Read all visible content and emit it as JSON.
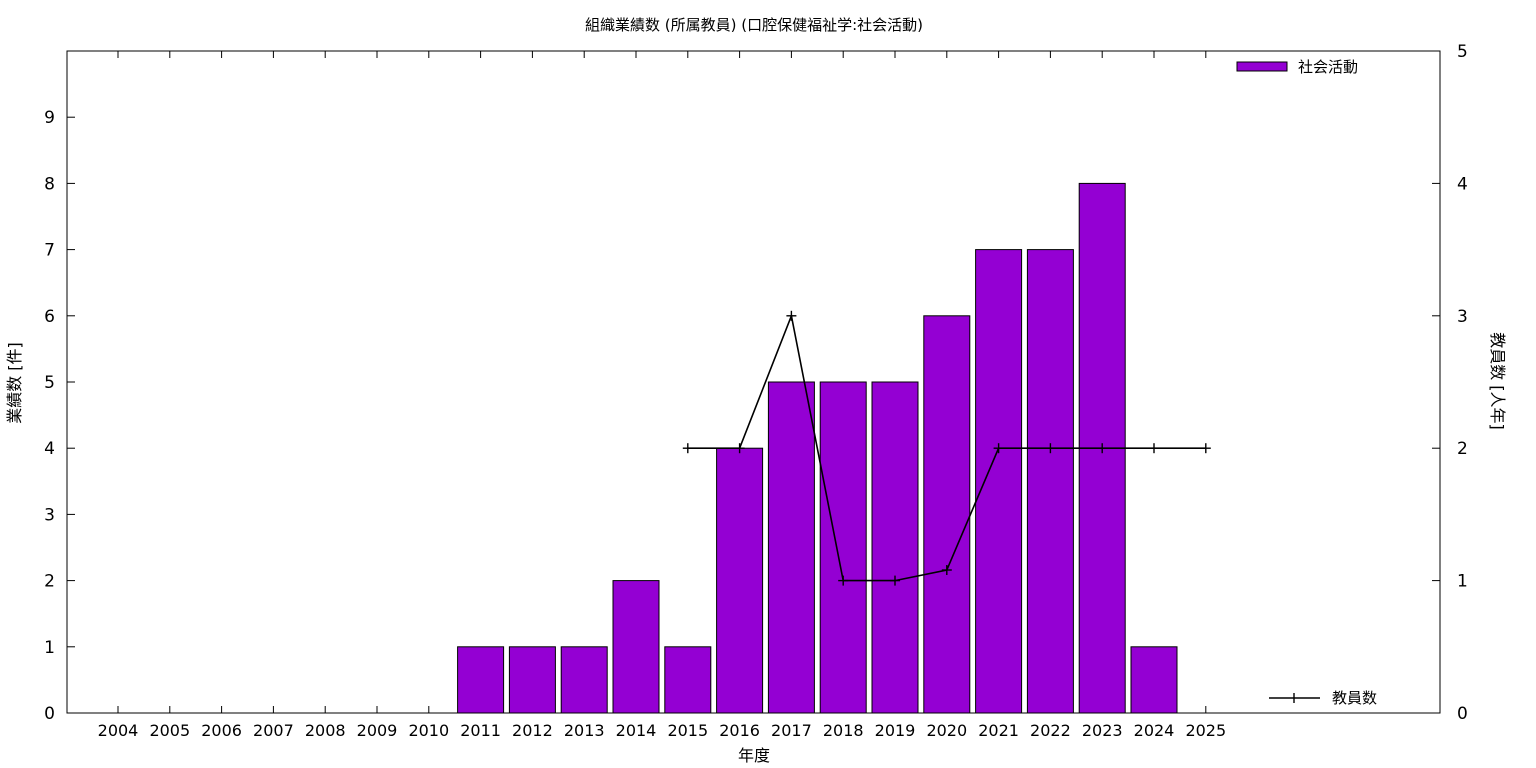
{
  "chart_data": {
    "type": "bar",
    "title": "組織業績数 (所属教員) (口腔保健福祉学:社会活動)",
    "xlabel": "年度",
    "ylabel": "業績数 [件]",
    "y2label": "教員数 [人年]",
    "categories": [
      "2004",
      "2005",
      "2006",
      "2007",
      "2008",
      "2009",
      "2010",
      "2011",
      "2012",
      "2013",
      "2014",
      "2015",
      "2016",
      "2017",
      "2018",
      "2019",
      "2020",
      "2021",
      "2022",
      "2023",
      "2024",
      "2025"
    ],
    "ylim": [
      0,
      10
    ],
    "y2lim": [
      0,
      5
    ],
    "yticks": [
      0,
      1,
      2,
      3,
      4,
      5,
      6,
      7,
      8,
      9
    ],
    "y2ticks": [
      0,
      1,
      2,
      3,
      4,
      5
    ],
    "series": [
      {
        "name": "社会活動",
        "type": "bar",
        "axis": "left",
        "color": "#9400d3",
        "values": [
          0,
          0,
          0,
          0,
          0,
          0,
          0,
          1,
          1,
          1,
          2,
          1,
          4,
          5,
          5,
          5,
          6,
          7,
          7,
          8,
          1,
          0
        ]
      },
      {
        "name": "教員数",
        "type": "line",
        "axis": "right",
        "color": "#000000",
        "x": [
          "2015",
          "2016",
          "2017",
          "2018",
          "2019",
          "2020",
          "2021",
          "2022",
          "2023",
          "2024",
          "2025"
        ],
        "values": [
          2,
          2,
          3,
          1,
          1,
          1.08,
          2,
          2,
          2,
          2,
          2
        ]
      }
    ],
    "legend_position": "top-right / bottom-right",
    "grid": false
  }
}
